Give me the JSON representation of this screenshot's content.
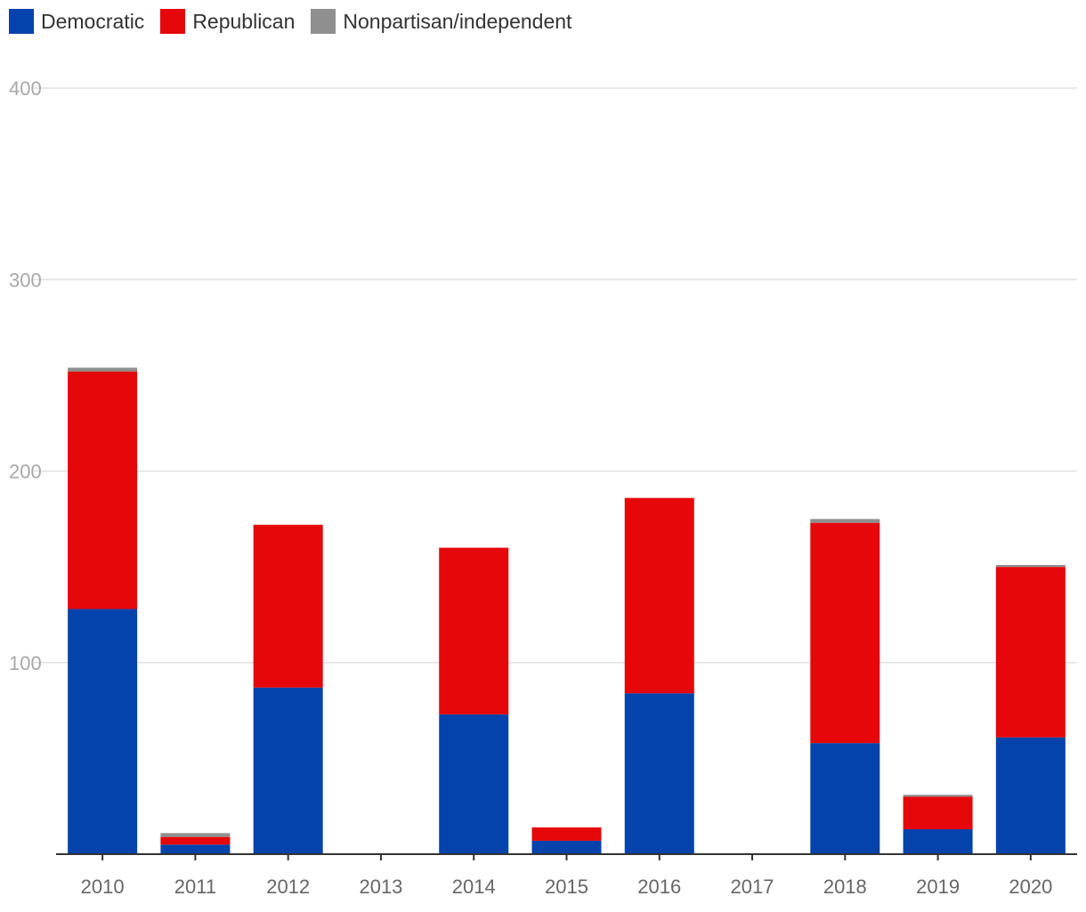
{
  "chart_data": {
    "type": "bar",
    "stacked": true,
    "categories": [
      "2010",
      "2011",
      "2012",
      "2013",
      "2014",
      "2015",
      "2016",
      "2017",
      "2018",
      "2019",
      "2020"
    ],
    "series": [
      {
        "name": "Democratic",
        "color": "#0343ab",
        "values": [
          128,
          5,
          87,
          0,
          73,
          7,
          84,
          0,
          58,
          13,
          61
        ]
      },
      {
        "name": "Republican",
        "color": "#e50709",
        "values": [
          124,
          4,
          85,
          0,
          87,
          7,
          102,
          0,
          115,
          17,
          89
        ]
      },
      {
        "name": "Nonpartisan/independent",
        "color": "#8f8f8f",
        "values": [
          2,
          2,
          0,
          0,
          0,
          0,
          0,
          0,
          2,
          1,
          1
        ]
      }
    ],
    "ylim": [
      0,
      400
    ],
    "yticks": [
      100,
      200,
      300,
      400
    ],
    "grid": true,
    "legend_position": "top-left"
  }
}
